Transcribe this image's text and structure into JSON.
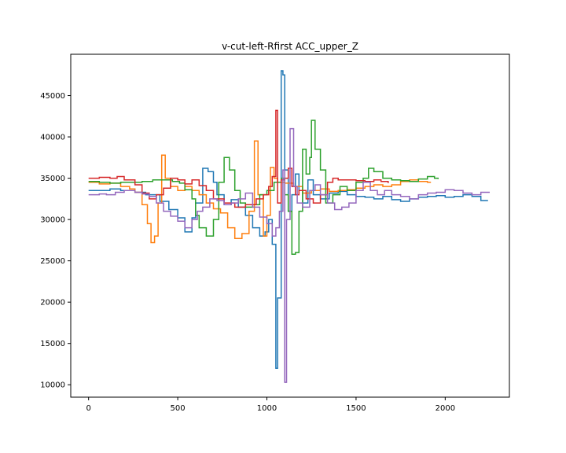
{
  "chart_data": {
    "type": "line",
    "drawstyle": "steps",
    "title": "v-cut-left-Rfirst ACC_upper_Z",
    "xlabel": "",
    "ylabel": "",
    "xlim": [
      -100,
      2360
    ],
    "ylim": [
      8500,
      50000
    ],
    "xticks": [
      0,
      500,
      1000,
      1500,
      2000
    ],
    "yticks": [
      10000,
      15000,
      20000,
      25000,
      30000,
      35000,
      40000,
      45000
    ],
    "grid": false,
    "legend": "none",
    "series": [
      {
        "color": "#1f77b4",
        "points": [
          [
            0,
            33500
          ],
          [
            60,
            33500
          ],
          [
            120,
            33700
          ],
          [
            180,
            33500
          ],
          [
            260,
            33300
          ],
          [
            320,
            33000
          ],
          [
            400,
            32200
          ],
          [
            450,
            31200
          ],
          [
            500,
            30200
          ],
          [
            540,
            28500
          ],
          [
            580,
            30200
          ],
          [
            600,
            32000
          ],
          [
            640,
            36200
          ],
          [
            670,
            35800
          ],
          [
            700,
            34500
          ],
          [
            720,
            33000
          ],
          [
            760,
            31800
          ],
          [
            800,
            32400
          ],
          [
            840,
            31500
          ],
          [
            880,
            30500
          ],
          [
            920,
            29000
          ],
          [
            960,
            28000
          ],
          [
            990,
            28500
          ],
          [
            1010,
            30000
          ],
          [
            1030,
            27000
          ],
          [
            1050,
            12000
          ],
          [
            1060,
            20500
          ],
          [
            1080,
            48000
          ],
          [
            1090,
            47500
          ],
          [
            1100,
            36000
          ],
          [
            1120,
            31000
          ],
          [
            1140,
            33000
          ],
          [
            1160,
            35500
          ],
          [
            1180,
            33500
          ],
          [
            1200,
            32000
          ],
          [
            1230,
            34800
          ],
          [
            1260,
            33000
          ],
          [
            1300,
            32500
          ],
          [
            1350,
            33200
          ],
          [
            1400,
            33400
          ],
          [
            1450,
            33000
          ],
          [
            1500,
            32800
          ],
          [
            1550,
            32700
          ],
          [
            1600,
            32500
          ],
          [
            1650,
            32800
          ],
          [
            1700,
            32400
          ],
          [
            1750,
            32200
          ],
          [
            1800,
            32500
          ],
          [
            1850,
            32700
          ],
          [
            1900,
            32800
          ],
          [
            1950,
            32900
          ],
          [
            2000,
            32700
          ],
          [
            2050,
            32800
          ],
          [
            2100,
            33000
          ],
          [
            2150,
            32800
          ],
          [
            2200,
            32300
          ],
          [
            2240,
            32300
          ]
        ]
      },
      {
        "color": "#ff7f0e",
        "points": [
          [
            0,
            34500
          ],
          [
            60,
            34300
          ],
          [
            120,
            34400
          ],
          [
            180,
            34000
          ],
          [
            230,
            33700
          ],
          [
            260,
            33300
          ],
          [
            300,
            31800
          ],
          [
            330,
            29500
          ],
          [
            350,
            27200
          ],
          [
            370,
            28000
          ],
          [
            390,
            32000
          ],
          [
            410,
            37800
          ],
          [
            430,
            35000
          ],
          [
            460,
            34000
          ],
          [
            500,
            33500
          ],
          [
            540,
            34000
          ],
          [
            580,
            33500
          ],
          [
            620,
            33000
          ],
          [
            660,
            32000
          ],
          [
            700,
            31300
          ],
          [
            740,
            30800
          ],
          [
            780,
            29000
          ],
          [
            820,
            27700
          ],
          [
            860,
            28300
          ],
          [
            900,
            31000
          ],
          [
            930,
            39500
          ],
          [
            950,
            33000
          ],
          [
            980,
            28000
          ],
          [
            1000,
            30500
          ],
          [
            1020,
            36300
          ],
          [
            1040,
            35000
          ],
          [
            1060,
            34500
          ],
          [
            1100,
            34400
          ],
          [
            1150,
            34000
          ],
          [
            1200,
            33200
          ],
          [
            1250,
            33500
          ],
          [
            1300,
            33700
          ],
          [
            1350,
            33400
          ],
          [
            1400,
            33500
          ],
          [
            1450,
            33600
          ],
          [
            1500,
            33800
          ],
          [
            1550,
            34000
          ],
          [
            1600,
            34200
          ],
          [
            1650,
            34000
          ],
          [
            1700,
            34200
          ],
          [
            1750,
            34600
          ],
          [
            1800,
            34800
          ],
          [
            1850,
            34600
          ],
          [
            1900,
            34500
          ],
          [
            1920,
            34500
          ]
        ]
      },
      {
        "color": "#2ca02c",
        "points": [
          [
            0,
            34600
          ],
          [
            60,
            34500
          ],
          [
            120,
            34400
          ],
          [
            180,
            34500
          ],
          [
            240,
            34500
          ],
          [
            300,
            34600
          ],
          [
            360,
            34800
          ],
          [
            420,
            34800
          ],
          [
            470,
            34600
          ],
          [
            510,
            34400
          ],
          [
            540,
            33600
          ],
          [
            580,
            32500
          ],
          [
            600,
            30500
          ],
          [
            620,
            29000
          ],
          [
            660,
            28000
          ],
          [
            700,
            30000
          ],
          [
            730,
            34500
          ],
          [
            760,
            37500
          ],
          [
            790,
            36000
          ],
          [
            820,
            33500
          ],
          [
            850,
            32000
          ],
          [
            880,
            31500
          ],
          [
            920,
            31800
          ],
          [
            960,
            33000
          ],
          [
            1000,
            33500
          ],
          [
            1040,
            34500
          ],
          [
            1080,
            35000
          ],
          [
            1100,
            33000
          ],
          [
            1120,
            31000
          ],
          [
            1140,
            25800
          ],
          [
            1160,
            26000
          ],
          [
            1180,
            31000
          ],
          [
            1200,
            38500
          ],
          [
            1220,
            35500
          ],
          [
            1240,
            37500
          ],
          [
            1250,
            42000
          ],
          [
            1270,
            38500
          ],
          [
            1300,
            36000
          ],
          [
            1330,
            32000
          ],
          [
            1370,
            33000
          ],
          [
            1410,
            34000
          ],
          [
            1450,
            33500
          ],
          [
            1500,
            34500
          ],
          [
            1540,
            35000
          ],
          [
            1570,
            36200
          ],
          [
            1600,
            35800
          ],
          [
            1650,
            35000
          ],
          [
            1700,
            34800
          ],
          [
            1750,
            34700
          ],
          [
            1800,
            34600
          ],
          [
            1850,
            34900
          ],
          [
            1900,
            35200
          ],
          [
            1940,
            35000
          ],
          [
            1960,
            34900
          ]
        ]
      },
      {
        "color": "#d62728",
        "points": [
          [
            0,
            35000
          ],
          [
            60,
            35100
          ],
          [
            120,
            35000
          ],
          [
            160,
            35200
          ],
          [
            200,
            34800
          ],
          [
            260,
            34200
          ],
          [
            300,
            33200
          ],
          [
            340,
            32500
          ],
          [
            380,
            33000
          ],
          [
            420,
            33800
          ],
          [
            460,
            35000
          ],
          [
            500,
            34800
          ],
          [
            540,
            34300
          ],
          [
            580,
            34800
          ],
          [
            620,
            34100
          ],
          [
            660,
            33500
          ],
          [
            700,
            32500
          ],
          [
            760,
            32000
          ],
          [
            820,
            31500
          ],
          [
            880,
            31800
          ],
          [
            940,
            32500
          ],
          [
            980,
            33000
          ],
          [
            1010,
            34000
          ],
          [
            1030,
            35200
          ],
          [
            1050,
            43200
          ],
          [
            1060,
            32000
          ],
          [
            1080,
            34800
          ],
          [
            1100,
            35000
          ],
          [
            1120,
            36200
          ],
          [
            1140,
            34000
          ],
          [
            1160,
            33000
          ],
          [
            1180,
            33500
          ],
          [
            1220,
            32500
          ],
          [
            1260,
            32000
          ],
          [
            1300,
            33000
          ],
          [
            1340,
            34500
          ],
          [
            1370,
            35000
          ],
          [
            1400,
            34800
          ],
          [
            1450,
            34800
          ],
          [
            1500,
            34700
          ],
          [
            1550,
            34600
          ],
          [
            1600,
            34800
          ],
          [
            1640,
            34600
          ],
          [
            1680,
            34400
          ]
        ]
      },
      {
        "color": "#9467bd",
        "points": [
          [
            0,
            33000
          ],
          [
            60,
            33100
          ],
          [
            100,
            33000
          ],
          [
            150,
            33300
          ],
          [
            200,
            33500
          ],
          [
            260,
            33300
          ],
          [
            300,
            33100
          ],
          [
            340,
            32800
          ],
          [
            380,
            32000
          ],
          [
            420,
            31000
          ],
          [
            460,
            30400
          ],
          [
            500,
            29800
          ],
          [
            540,
            29000
          ],
          [
            580,
            30000
          ],
          [
            610,
            31000
          ],
          [
            640,
            31500
          ],
          [
            680,
            32500
          ],
          [
            720,
            32300
          ],
          [
            760,
            31800
          ],
          [
            800,
            32000
          ],
          [
            840,
            32500
          ],
          [
            880,
            33200
          ],
          [
            920,
            31500
          ],
          [
            960,
            30300
          ],
          [
            1000,
            29500
          ],
          [
            1030,
            28000
          ],
          [
            1050,
            29000
          ],
          [
            1070,
            31000
          ],
          [
            1090,
            36000
          ],
          [
            1100,
            10300
          ],
          [
            1110,
            30000
          ],
          [
            1130,
            41000
          ],
          [
            1150,
            34000
          ],
          [
            1170,
            32000
          ],
          [
            1200,
            31500
          ],
          [
            1240,
            33500
          ],
          [
            1270,
            34200
          ],
          [
            1300,
            33000
          ],
          [
            1340,
            32000
          ],
          [
            1380,
            31200
          ],
          [
            1420,
            31500
          ],
          [
            1460,
            32000
          ],
          [
            1500,
            33500
          ],
          [
            1540,
            34500
          ],
          [
            1580,
            33500
          ],
          [
            1620,
            33000
          ],
          [
            1660,
            33500
          ],
          [
            1700,
            33000
          ],
          [
            1750,
            32800
          ],
          [
            1800,
            32500
          ],
          [
            1850,
            33000
          ],
          [
            1900,
            33200
          ],
          [
            1950,
            33300
          ],
          [
            2000,
            33600
          ],
          [
            2050,
            33500
          ],
          [
            2100,
            33200
          ],
          [
            2150,
            33000
          ],
          [
            2200,
            33300
          ],
          [
            2250,
            33300
          ]
        ]
      }
    ]
  }
}
